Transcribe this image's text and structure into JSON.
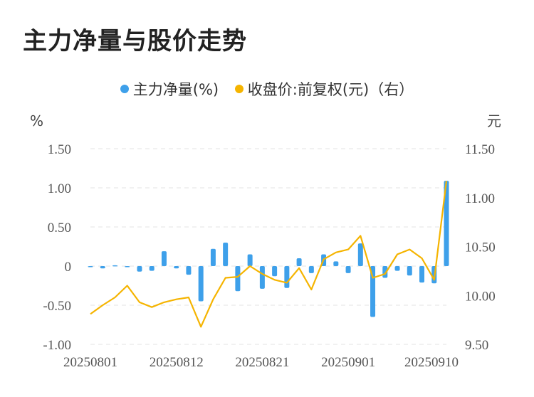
{
  "title": "主力净量与股价走势",
  "legend": {
    "bar_label": "主力净量(%)",
    "line_label": "收盘价:前复权(元)（右）"
  },
  "colors": {
    "bar": "#3ea0ea",
    "line": "#f5b400",
    "grid": "#e3e3e3"
  },
  "chart_data": {
    "type": "bar+line",
    "left_unit": "%",
    "right_unit": "元",
    "y_left": {
      "min": -1.0,
      "max": 1.5,
      "ticks": [
        1.5,
        1.0,
        0.5,
        0,
        -0.5,
        -1.0
      ],
      "tick_labels": [
        "1.50",
        "1.00",
        "0.50",
        "0",
        "-0.50",
        "-1.00"
      ]
    },
    "y_right": {
      "min": 9.5,
      "max": 11.5,
      "ticks": [
        11.5,
        11.0,
        10.5,
        10.0,
        9.5
      ],
      "tick_labels": [
        "11.50",
        "11.00",
        "10.50",
        "10.00",
        "9.50"
      ]
    },
    "x_tick_labels": [
      "20250801",
      "20250812",
      "20250821",
      "20250901",
      "20250910"
    ],
    "x_tick_indices": [
      0,
      7,
      14,
      21,
      28
    ],
    "categories": [
      "20250801",
      "20250804",
      "20250805",
      "20250806",
      "20250807",
      "20250808",
      "20250811",
      "20250812",
      "20250813",
      "20250814",
      "20250815",
      "20250818",
      "20250819",
      "20250820",
      "20250821",
      "20250822",
      "20250825",
      "20250826",
      "20250827",
      "20250828",
      "20250829",
      "20250901",
      "20250902",
      "20250903",
      "20250904",
      "20250905",
      "20250908",
      "20250909",
      "20250910",
      "20250911"
    ],
    "series": [
      {
        "name": "主力净量(%)",
        "type": "bar",
        "values": [
          -0.01,
          -0.03,
          0.01,
          -0.01,
          -0.07,
          -0.06,
          0.19,
          -0.03,
          -0.11,
          -0.45,
          0.22,
          0.3,
          -0.32,
          0.15,
          -0.29,
          -0.13,
          -0.28,
          0.1,
          -0.09,
          0.15,
          0.06,
          -0.09,
          0.29,
          -0.65,
          -0.15,
          -0.06,
          -0.12,
          -0.21,
          -0.22,
          1.09
        ]
      },
      {
        "name": "收盘价:前复权(元)",
        "type": "line",
        "axis": "right",
        "values": [
          9.81,
          9.9,
          9.98,
          10.1,
          9.93,
          9.88,
          9.93,
          9.96,
          9.98,
          9.68,
          9.96,
          10.18,
          10.19,
          10.3,
          10.22,
          10.16,
          10.13,
          10.28,
          10.06,
          10.37,
          10.44,
          10.47,
          10.61,
          10.18,
          10.22,
          10.42,
          10.47,
          10.38,
          10.16,
          11.17
        ]
      }
    ]
  }
}
